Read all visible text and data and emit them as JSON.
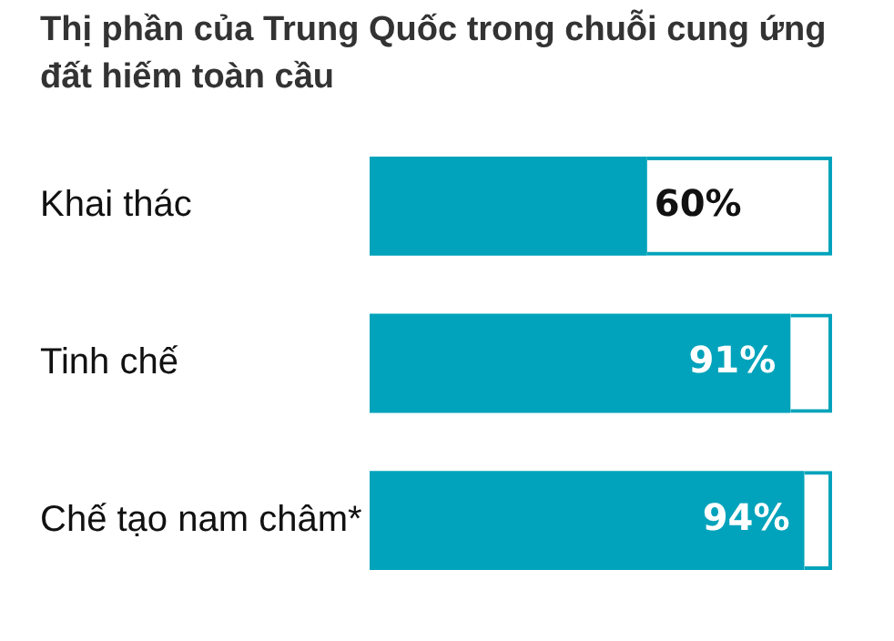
{
  "chart_data": {
    "type": "bar",
    "orientation": "horizontal",
    "stacked": true,
    "title": "Thị phần của Trung Quốc trong chuỗi cung ứng đất hiếm toàn cầu",
    "categories": [
      "Khai thác",
      "Tinh chế",
      "Chế tạo nam châm*"
    ],
    "series": [
      {
        "color": "#00a3bb",
        "values": [
          60,
          91,
          94
        ],
        "value_labels": [
          "60%",
          "91%",
          "94%"
        ]
      },
      {
        "color": "#00a3bb",
        "values": [
          40,
          9,
          6
        ]
      }
    ],
    "xlim": [
      0,
      100
    ],
    "tick_labels": "y",
    "legend": false
  }
}
